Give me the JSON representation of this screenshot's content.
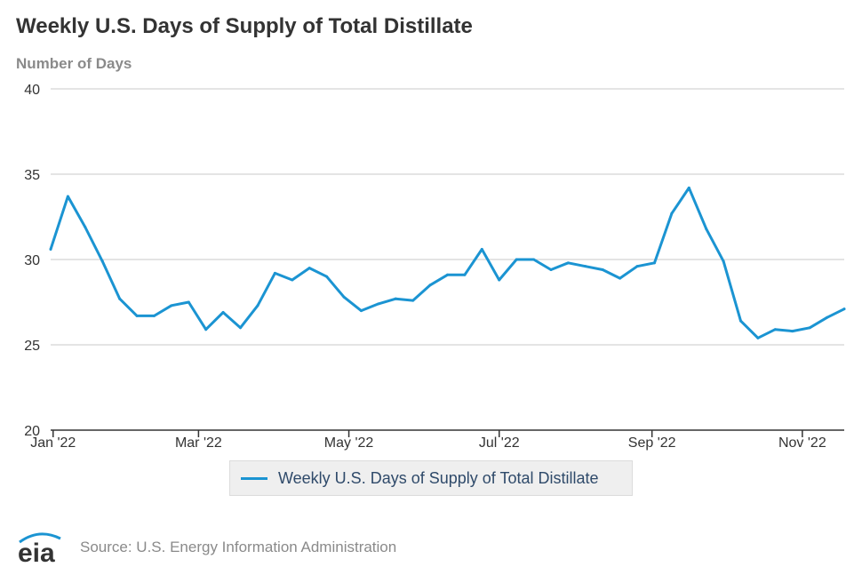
{
  "title": "Weekly U.S. Days of Supply of Total Distillate",
  "footer": {
    "logo_text": "eia",
    "source": "Source: U.S. Energy Information Administration"
  },
  "colors": {
    "series": "#1b94d2",
    "grid": "#c8c8c8",
    "axis": "#333333",
    "logo_swoosh": "#1b94d2"
  },
  "chart_data": {
    "type": "line",
    "title": "Weekly U.S. Days of Supply of Total Distillate",
    "ylabel": "Number of Days",
    "xlabel": "",
    "ylim": [
      20,
      40
    ],
    "yticks": [
      "20",
      "25",
      "30",
      "35",
      "40"
    ],
    "xtick_labels": [
      "Jan '22",
      "Mar '22",
      "May '22",
      "Jul '22",
      "Sep '22",
      "Nov '22"
    ],
    "grid": true,
    "legend": "bottom-center",
    "series": [
      {
        "name": "Weekly U.S. Days of Supply of Total Distillate",
        "dates": [
          "2021-12-31",
          "2022-01-07",
          "2022-01-14",
          "2022-01-21",
          "2022-01-28",
          "2022-02-04",
          "2022-02-11",
          "2022-02-18",
          "2022-02-25",
          "2022-03-04",
          "2022-03-11",
          "2022-03-18",
          "2022-03-25",
          "2022-04-01",
          "2022-04-08",
          "2022-04-15",
          "2022-04-22",
          "2022-04-29",
          "2022-05-06",
          "2022-05-13",
          "2022-05-20",
          "2022-05-27",
          "2022-06-03",
          "2022-06-10",
          "2022-06-17",
          "2022-06-24",
          "2022-07-01",
          "2022-07-08",
          "2022-07-15",
          "2022-07-22",
          "2022-07-29",
          "2022-08-05",
          "2022-08-12",
          "2022-08-19",
          "2022-08-26",
          "2022-09-02",
          "2022-09-09",
          "2022-09-16",
          "2022-09-23",
          "2022-09-30",
          "2022-10-07",
          "2022-10-14",
          "2022-10-21",
          "2022-10-28",
          "2022-11-04",
          "2022-11-11",
          "2022-11-18"
        ],
        "values": [
          30.6,
          33.7,
          31.9,
          29.9,
          27.7,
          26.7,
          26.7,
          27.3,
          27.5,
          25.9,
          26.9,
          26.0,
          27.3,
          29.2,
          28.8,
          29.5,
          29.0,
          27.8,
          27.0,
          27.4,
          27.7,
          27.6,
          28.5,
          29.1,
          29.1,
          30.6,
          28.8,
          30.0,
          30.0,
          29.4,
          29.8,
          29.6,
          29.4,
          28.9,
          29.6,
          29.8,
          32.7,
          34.2,
          31.8,
          29.9,
          26.4,
          25.4,
          25.9,
          25.8,
          26.0,
          26.6,
          27.1
        ]
      }
    ]
  }
}
